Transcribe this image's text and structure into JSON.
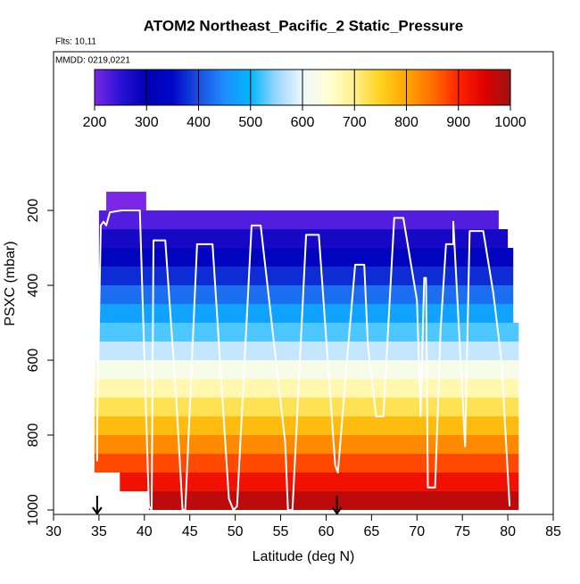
{
  "chart_data": {
    "type": "curtain",
    "title": "ATOM2 Northeast_Pacific_2 Static_Pressure",
    "annotations": [
      "Flts: 10,11",
      "MMDD: 0219,0221"
    ],
    "x_label": "Latitude (deg N)",
    "y_label": "PSXC (mbar)",
    "xlim": [
      30,
      85
    ],
    "xticks": [
      30,
      35,
      40,
      45,
      50,
      55,
      60,
      65,
      70,
      75,
      80,
      85
    ],
    "ylim": [
      -224,
      1012
    ],
    "y_inverted": true,
    "yticks": [
      200,
      400,
      600,
      800,
      1000
    ],
    "colorbar": {
      "lim": [
        200,
        1000
      ],
      "ticks": [
        200,
        300,
        400,
        500,
        600,
        700,
        800,
        900,
        1000
      ],
      "colors": [
        "#7a28e6",
        "#2a12d6",
        "#0000b4",
        "#0008c8",
        "#1a50e0",
        "#1e8cff",
        "#00b8ff",
        "#9ad6ff",
        "#eef8ff",
        "#ffffd2",
        "#fff08a",
        "#ffd21e",
        "#ffa500",
        "#ff6e00",
        "#ff2200",
        "#e00000",
        "#9a1414"
      ]
    },
    "bands": {
      "levels": [
        175,
        225,
        275,
        325,
        375,
        425,
        475,
        525,
        575,
        625,
        675,
        725,
        775,
        825,
        875,
        925,
        975
      ],
      "lat_start": [
        35.8,
        35,
        35,
        35,
        35,
        35,
        35,
        35,
        35,
        34.5,
        34.5,
        34.5,
        34.5,
        34.5,
        34.5,
        37.3,
        40.5
      ],
      "lat_end": [
        40.2,
        79,
        80,
        80.6,
        80.6,
        80.6,
        80.6,
        81.2,
        81.2,
        81.2,
        81.2,
        81.2,
        81.2,
        81.2,
        81.2,
        81.2,
        81.2
      ]
    },
    "track": {
      "lat": [
        34.8,
        34.8,
        35.2,
        35.5,
        35.8,
        36.2,
        37.5,
        39.5,
        40.5,
        40.8,
        41,
        42.3,
        43.5,
        44.2,
        44.5,
        45.8,
        47.5,
        49.3,
        49.8,
        50.2,
        51.8,
        52.8,
        55.5,
        55.8,
        56.3,
        57.8,
        59.2,
        61,
        61.3,
        62.3,
        63.2,
        64.2,
        64.6,
        65.5,
        66.3,
        67.5,
        68.5,
        70,
        70.4,
        70.8,
        71,
        71.2,
        72,
        72.6,
        73.2,
        74,
        74,
        75.3,
        75.8,
        77.3,
        78.4,
        79.3,
        80.2
      ],
      "pressure": [
        870,
        780,
        240,
        230,
        240,
        205,
        200,
        200,
        990,
        1000,
        280,
        280,
        700,
        1000,
        1000,
        290,
        290,
        970,
        1000,
        990,
        240,
        240,
        820,
        1000,
        1000,
        265,
        265,
        880,
        900,
        600,
        345,
        345,
        560,
        750,
        750,
        220,
        220,
        440,
        750,
        380,
        380,
        940,
        940,
        520,
        290,
        290,
        230,
        830,
        255,
        255,
        420,
        600,
        990
      ]
    },
    "markers": [
      34.8,
      61.2
    ]
  }
}
